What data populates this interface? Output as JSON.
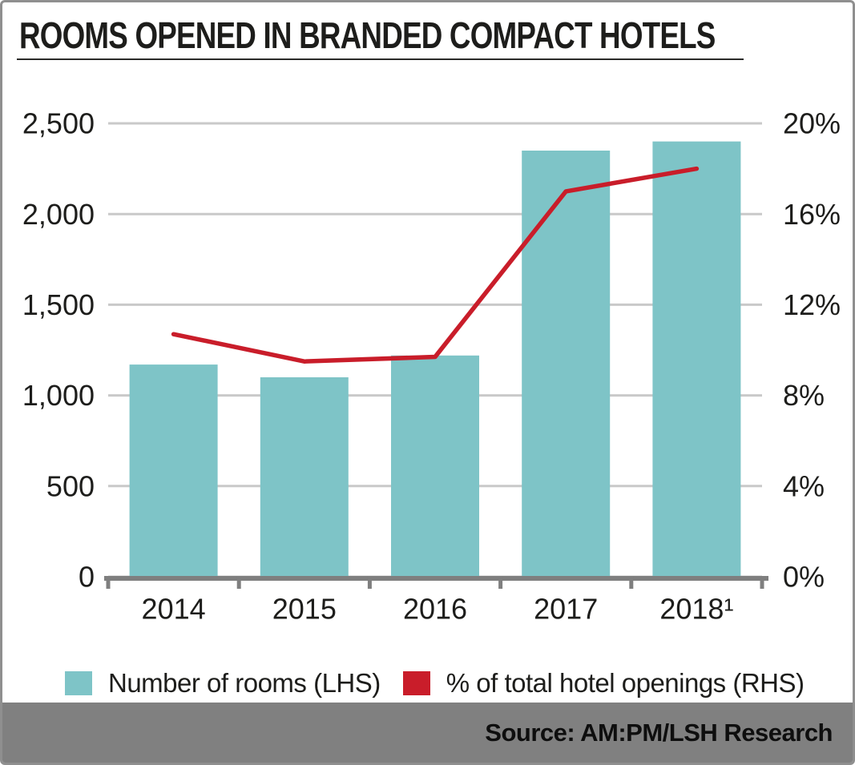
{
  "chart_data": {
    "type": "bar+line",
    "title": "ROOMS OPENED IN BRANDED COMPACT HOTELS",
    "categories": [
      "2014",
      "2015",
      "2016",
      "2017",
      "2018¹"
    ],
    "series": [
      {
        "name": "Number of rooms (LHS)",
        "type": "bar",
        "axis": "left",
        "color": "#7ec4c7",
        "values": [
          1170,
          1100,
          1220,
          2350,
          2400
        ]
      },
      {
        "name": "% of total hotel openings (RHS)",
        "type": "line",
        "axis": "right",
        "color": "#c91d2a",
        "values": [
          10.7,
          9.5,
          9.7,
          17.0,
          18.0
        ]
      }
    ],
    "left_axis": {
      "min": 0,
      "max": 2500,
      "ticks": [
        "0",
        "500",
        "1,000",
        "1,500",
        "2,000",
        "2,500"
      ]
    },
    "right_axis": {
      "min": 0,
      "max": 20,
      "ticks": [
        "0%",
        "4%",
        "8%",
        "12%",
        "16%",
        "20%"
      ]
    },
    "grid": true,
    "legend_position": "bottom"
  },
  "footer": {
    "source": "Source: AM:PM/LSH Research"
  },
  "colors": {
    "bar": "#7ec4c7",
    "line": "#c91d2a",
    "gridline": "#c9c9c9",
    "axis": "#7f7f7f",
    "text": "#1d1d1b",
    "source_strip": "#808080"
  }
}
